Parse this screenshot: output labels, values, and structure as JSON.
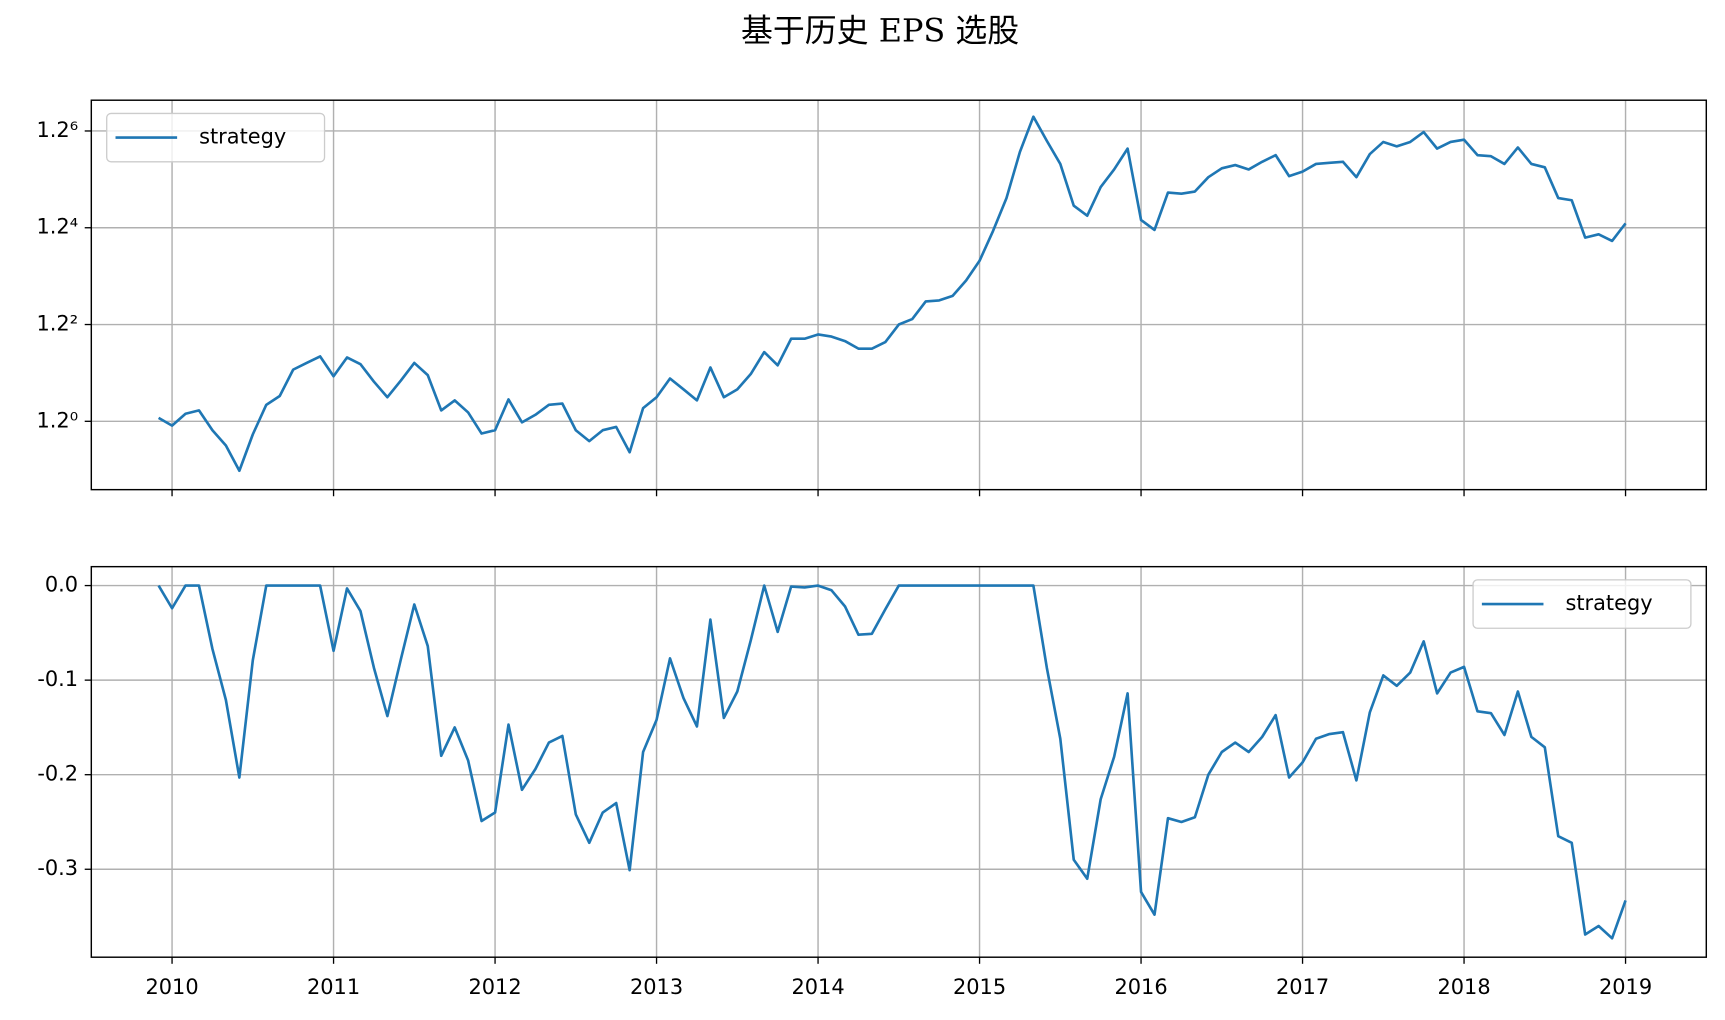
{
  "title": "基于历史 EPS 选股",
  "chart_data": [
    {
      "type": "line",
      "yscale": "log",
      "grid": true,
      "legend": "upper left",
      "show_xtick_labels": false,
      "xlim": [
        "2009-06",
        "2019-06"
      ],
      "ylim": [
        0.773,
        3.353
      ],
      "xticks": [
        2010,
        2011,
        2012,
        2013,
        2014,
        2015,
        2016,
        2017,
        2018,
        2019
      ],
      "yticks": [
        {
          "value": 1,
          "label": "1.2⁰"
        },
        {
          "value": 1.44,
          "label": "1.2²"
        },
        {
          "value": 2.0736,
          "label": "1.2⁴"
        },
        {
          "value": 2.985984,
          "label": "1.2⁶"
        }
      ],
      "x": [
        "2009-11",
        "2009-12",
        "2010-01",
        "2010-02",
        "2010-03",
        "2010-04",
        "2010-05",
        "2010-06",
        "2010-07",
        "2010-08",
        "2010-09",
        "2010-10",
        "2010-11",
        "2010-12",
        "2011-01",
        "2011-02",
        "2011-03",
        "2011-04",
        "2011-05",
        "2011-06",
        "2011-07",
        "2011-08",
        "2011-09",
        "2011-10",
        "2011-11",
        "2011-12",
        "2012-01",
        "2012-02",
        "2012-03",
        "2012-04",
        "2012-05",
        "2012-06",
        "2012-07",
        "2012-08",
        "2012-09",
        "2012-10",
        "2012-11",
        "2012-12",
        "2013-01",
        "2013-02",
        "2013-03",
        "2013-04",
        "2013-05",
        "2013-06",
        "2013-07",
        "2013-08",
        "2013-09",
        "2013-10",
        "2013-11",
        "2013-12",
        "2014-01",
        "2014-02",
        "2014-03",
        "2014-04",
        "2014-05",
        "2014-06",
        "2014-07",
        "2014-08",
        "2014-09",
        "2014-10",
        "2014-11",
        "2014-12",
        "2015-01",
        "2015-02",
        "2015-03",
        "2015-04",
        "2015-05",
        "2015-06",
        "2015-07",
        "2015-08",
        "2015-09",
        "2015-10",
        "2015-11",
        "2015-12",
        "2016-01",
        "2016-02",
        "2016-03",
        "2016-04",
        "2016-05",
        "2016-06",
        "2016-07",
        "2016-08",
        "2016-09",
        "2016-10",
        "2016-11",
        "2016-12",
        "2017-01",
        "2017-02",
        "2017-03",
        "2017-04",
        "2017-05",
        "2017-06",
        "2017-07",
        "2017-08",
        "2017-09",
        "2017-10",
        "2017-11",
        "2017-12",
        "2018-01",
        "2018-02",
        "2018-03",
        "2018-04",
        "2018-05",
        "2018-06",
        "2018-07",
        "2018-08",
        "2018-09",
        "2018-10",
        "2018-11",
        "2018-12"
      ],
      "series": [
        {
          "name": "strategy",
          "color": "#1f77b4",
          "values": [
            1.013,
            0.984,
            1.029,
            1.042,
            0.967,
            0.913,
            0.83,
            0.952,
            1.064,
            1.1,
            1.215,
            1.246,
            1.277,
            1.185,
            1.272,
            1.24,
            1.161,
            1.095,
            1.166,
            1.246,
            1.19,
            1.042,
            1.082,
            1.034,
            0.955,
            0.967,
            1.086,
            0.996,
            1.025,
            1.064,
            1.069,
            0.967,
            0.928,
            0.967,
            0.979,
            0.89,
            1.051,
            1.095,
            1.175,
            1.128,
            1.082,
            1.225,
            1.095,
            1.128,
            1.195,
            1.298,
            1.235,
            1.365,
            1.365,
            1.387,
            1.376,
            1.353,
            1.315,
            1.315,
            1.348,
            1.44,
            1.47,
            1.571,
            1.577,
            1.604,
            1.7,
            1.831,
            2.048,
            2.319,
            2.76,
            3.151,
            2.877,
            2.637,
            2.253,
            2.17,
            2.417,
            2.583,
            2.794,
            2.135,
            2.057,
            2.368,
            2.358,
            2.377,
            2.509,
            2.594,
            2.626,
            2.583,
            2.659,
            2.726,
            2.519,
            2.562,
            2.637,
            2.648,
            2.659,
            2.509,
            2.737,
            2.865,
            2.818,
            2.865,
            2.974,
            2.794,
            2.865,
            2.889,
            2.726,
            2.715,
            2.637,
            2.806,
            2.637,
            2.604,
            2.319,
            2.3,
            1.998,
            2.023,
            1.973,
            2.108
          ]
        }
      ]
    },
    {
      "type": "line",
      "yscale": "linear",
      "grid": true,
      "legend": "upper right",
      "show_xtick_labels": true,
      "xlim": [
        "2009-06",
        "2019-06"
      ],
      "ylim": [
        -0.393,
        0.02
      ],
      "xticks": [
        2010,
        2011,
        2012,
        2013,
        2014,
        2015,
        2016,
        2017,
        2018,
        2019
      ],
      "yticks": [
        {
          "value": 0,
          "label": "0.0"
        },
        -0.1,
        -0.2,
        -0.3
      ],
      "x": [
        "2009-11",
        "2009-12",
        "2010-01",
        "2010-02",
        "2010-03",
        "2010-04",
        "2010-05",
        "2010-06",
        "2010-07",
        "2010-08",
        "2010-09",
        "2010-10",
        "2010-11",
        "2010-12",
        "2011-01",
        "2011-02",
        "2011-03",
        "2011-04",
        "2011-05",
        "2011-06",
        "2011-07",
        "2011-08",
        "2011-09",
        "2011-10",
        "2011-11",
        "2011-12",
        "2012-01",
        "2012-02",
        "2012-03",
        "2012-04",
        "2012-05",
        "2012-06",
        "2012-07",
        "2012-08",
        "2012-09",
        "2012-10",
        "2012-11",
        "2012-12",
        "2013-01",
        "2013-02",
        "2013-03",
        "2013-04",
        "2013-05",
        "2013-06",
        "2013-07",
        "2013-08",
        "2013-09",
        "2013-10",
        "2013-11",
        "2013-12",
        "2014-01",
        "2014-02",
        "2014-03",
        "2014-04",
        "2014-05",
        "2014-06",
        "2014-07",
        "2014-08",
        "2014-09",
        "2014-10",
        "2014-11",
        "2014-12",
        "2015-01",
        "2015-02",
        "2015-03",
        "2015-04",
        "2015-05",
        "2015-06",
        "2015-07",
        "2015-08",
        "2015-09",
        "2015-10",
        "2015-11",
        "2015-12",
        "2016-01",
        "2016-02",
        "2016-03",
        "2016-04",
        "2016-05",
        "2016-06",
        "2016-07",
        "2016-08",
        "2016-09",
        "2016-10",
        "2016-11",
        "2016-12",
        "2017-01",
        "2017-02",
        "2017-03",
        "2017-04",
        "2017-05",
        "2017-06",
        "2017-07",
        "2017-08",
        "2017-09",
        "2017-10",
        "2017-11",
        "2017-12",
        "2018-01",
        "2018-02",
        "2018-03",
        "2018-04",
        "2018-05",
        "2018-06",
        "2018-07",
        "2018-08",
        "2018-09",
        "2018-10",
        "2018-11",
        "2018-12"
      ],
      "series": [
        {
          "name": "strategy",
          "color": "#1f77b4",
          "values": [
            0,
            -0.024,
            0,
            0,
            -0.067,
            -0.121,
            -0.203,
            -0.079,
            0,
            0,
            0,
            0,
            0,
            -0.069,
            -0.003,
            -0.027,
            -0.087,
            -0.138,
            -0.078,
            -0.02,
            -0.064,
            -0.18,
            -0.15,
            -0.185,
            -0.249,
            -0.24,
            -0.147,
            -0.216,
            -0.194,
            -0.166,
            -0.159,
            -0.242,
            -0.272,
            -0.24,
            -0.23,
            -0.301,
            -0.176,
            -0.142,
            -0.077,
            -0.119,
            -0.149,
            -0.036,
            -0.14,
            -0.112,
            -0.058,
            0,
            -0.049,
            -0.001,
            -0.002,
            0,
            -0.005,
            -0.022,
            -0.052,
            -0.051,
            -0.025,
            0,
            0,
            0,
            0,
            0,
            0,
            0,
            0,
            0,
            0,
            0,
            -0.087,
            -0.162,
            -0.29,
            -0.31,
            -0.226,
            -0.181,
            -0.114,
            -0.324,
            -0.348,
            -0.246,
            -0.25,
            -0.245,
            -0.2,
            -0.176,
            -0.166,
            -0.176,
            -0.16,
            -0.137,
            -0.203,
            -0.187,
            -0.162,
            -0.157,
            -0.155,
            -0.206,
            -0.134,
            -0.095,
            -0.106,
            -0.092,
            -0.059,
            -0.114,
            -0.092,
            -0.086,
            -0.133,
            -0.135,
            -0.158,
            -0.112,
            -0.16,
            -0.171,
            -0.265,
            -0.272,
            -0.369,
            -0.36,
            -0.373,
            -0.333
          ]
        }
      ]
    }
  ]
}
